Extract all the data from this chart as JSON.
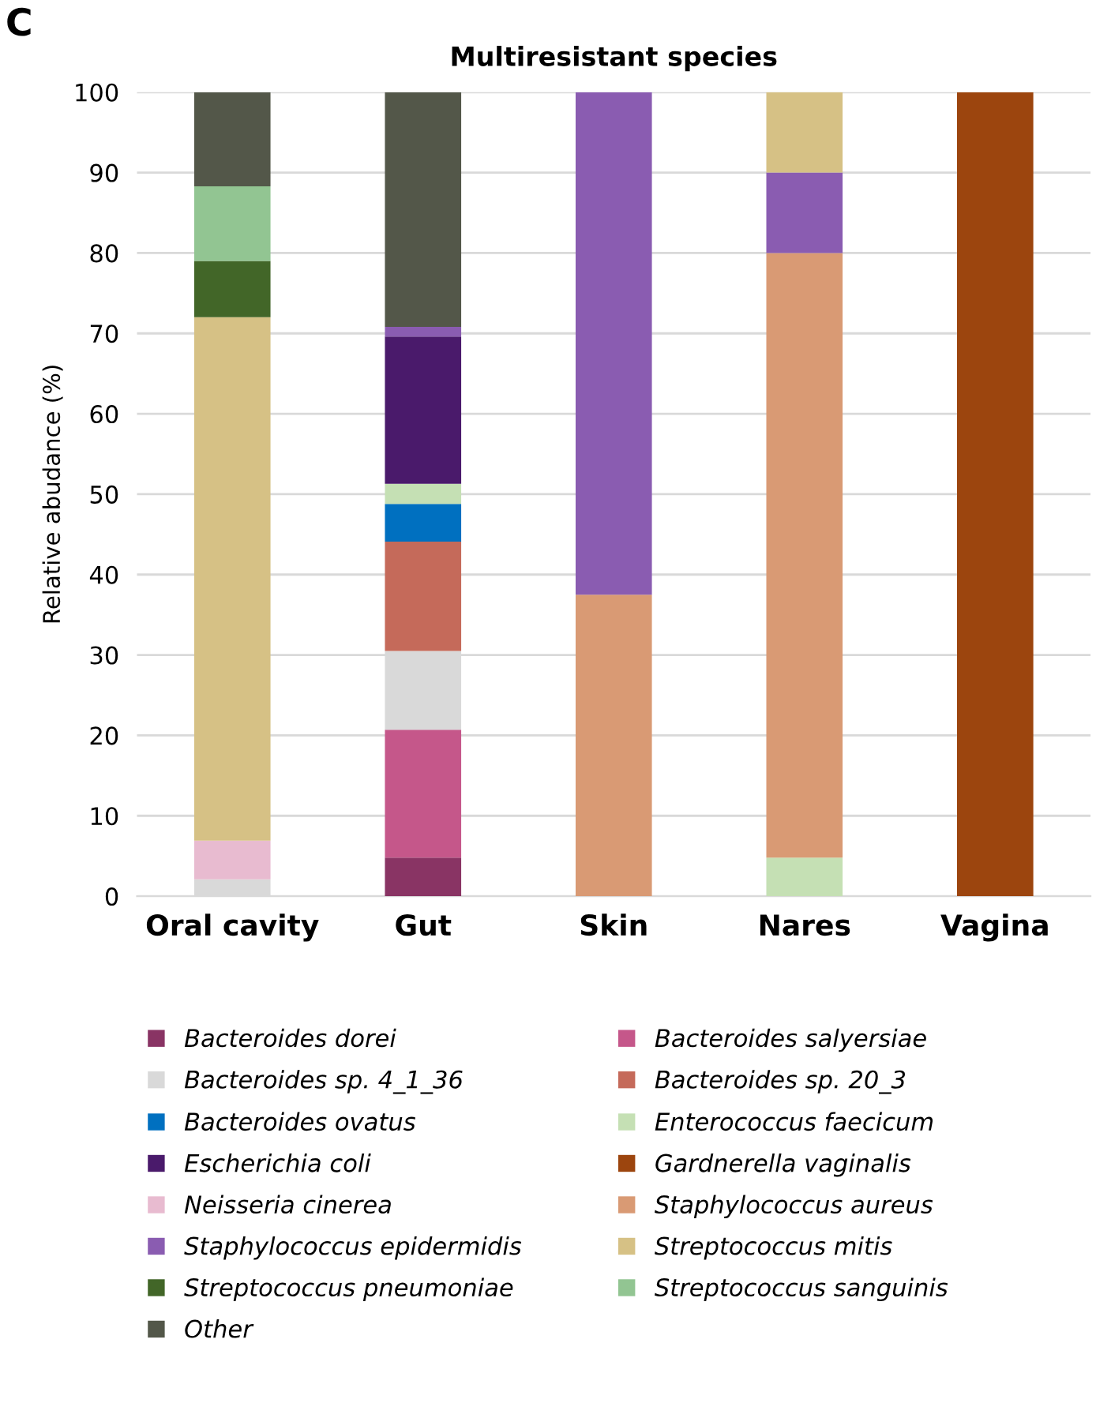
{
  "chart_data": {
    "type": "bar",
    "stacked": true,
    "title": "Multiresistant species",
    "ylabel": "Relative abudance (%)",
    "annotations": [
      "C"
    ],
    "categories": [
      "Oral cavity",
      "Gut",
      "Skin",
      "Nares",
      "Vagina"
    ],
    "ylim": [
      0,
      100
    ],
    "yticks": [
      0,
      10,
      20,
      30,
      40,
      50,
      60,
      70,
      80,
      90,
      100
    ],
    "grid": "y",
    "legend": "bottom",
    "series": [
      {
        "name": "Bacteroides dorei",
        "color": "#893464",
        "values": [
          null,
          4.8,
          null,
          null,
          null
        ]
      },
      {
        "name": "Bacteroides salyersiae",
        "color": "#c5578a",
        "values": [
          null,
          15.9,
          null,
          null,
          null
        ]
      },
      {
        "name": "Bacteroides sp. 4_1_36",
        "color": "#d9d9d9",
        "values": [
          2.1,
          9.8,
          null,
          null,
          null
        ]
      },
      {
        "name": "Bacteroides sp. 20_3",
        "color": "#c56a5a",
        "values": [
          null,
          13.6,
          null,
          null,
          null
        ]
      },
      {
        "name": "Bacteroides ovatus",
        "color": "#0070c0",
        "values": [
          null,
          4.7,
          null,
          null,
          null
        ]
      },
      {
        "name": "Enterococcus faecicum",
        "color": "#c5e0b4",
        "values": [
          null,
          2.5,
          null,
          4.8,
          null
        ]
      },
      {
        "name": "Escherichia coli",
        "color": "#4a1a6b",
        "values": [
          null,
          18.3,
          null,
          null,
          null
        ]
      },
      {
        "name": "Gardnerella vaginalis",
        "color": "#9c450e",
        "values": [
          null,
          null,
          null,
          null,
          100
        ]
      },
      {
        "name": "Neisseria cinerea",
        "color": "#e8bbd0",
        "values": [
          4.8,
          null,
          null,
          null,
          null
        ]
      },
      {
        "name": "Staphylococcus aureus",
        "color": "#d99a74",
        "values": [
          null,
          null,
          37.5,
          75.2,
          null
        ]
      },
      {
        "name": "Staphylococcus epidermidis",
        "color": "#8a5cb1",
        "values": [
          null,
          1.2,
          62.5,
          10,
          null
        ]
      },
      {
        "name": "Streptococcus mitis",
        "color": "#d6c185",
        "values": [
          65.1,
          null,
          null,
          10,
          null
        ]
      },
      {
        "name": "Streptococcus pneumoniae",
        "color": "#426628",
        "values": [
          7,
          null,
          null,
          null,
          null
        ]
      },
      {
        "name": "Streptococcus sanguinis",
        "color": "#92c592",
        "values": [
          9.3,
          null,
          null,
          null,
          null
        ]
      },
      {
        "name": "Other",
        "color": "#535749",
        "values": [
          11.7,
          29.2,
          null,
          null,
          null
        ]
      }
    ]
  }
}
